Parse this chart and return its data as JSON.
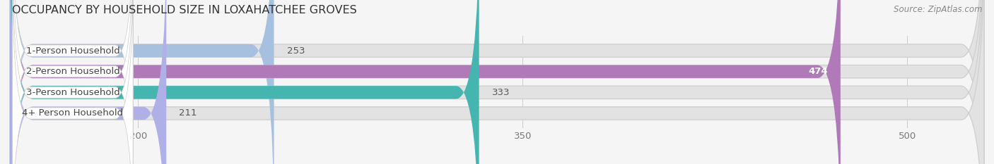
{
  "title": "OCCUPANCY BY HOUSEHOLD SIZE IN LOXAHATCHEE GROVES",
  "source": "Source: ZipAtlas.com",
  "categories": [
    "1-Person Household",
    "2-Person Household",
    "3-Person Household",
    "4+ Person Household"
  ],
  "values": [
    253,
    474,
    333,
    211
  ],
  "colors": [
    "#a8c0e0",
    "#b07ab8",
    "#45b5b0",
    "#b0b0e8"
  ],
  "xlim_left": 150,
  "xlim_right": 530,
  "xticks": [
    200,
    350,
    500
  ],
  "bar_height": 0.62,
  "background_color": "#f5f5f5",
  "bar_bg_color": "#e2e2e2",
  "label_box_color": "#ffffff",
  "title_fontsize": 11.5,
  "label_fontsize": 9.5,
  "value_fontsize": 9.5,
  "source_fontsize": 8.5,
  "row_bg_colors": [
    "#f0f0f0",
    "#f0f0f0",
    "#f0f0f0",
    "#f0f0f0"
  ]
}
